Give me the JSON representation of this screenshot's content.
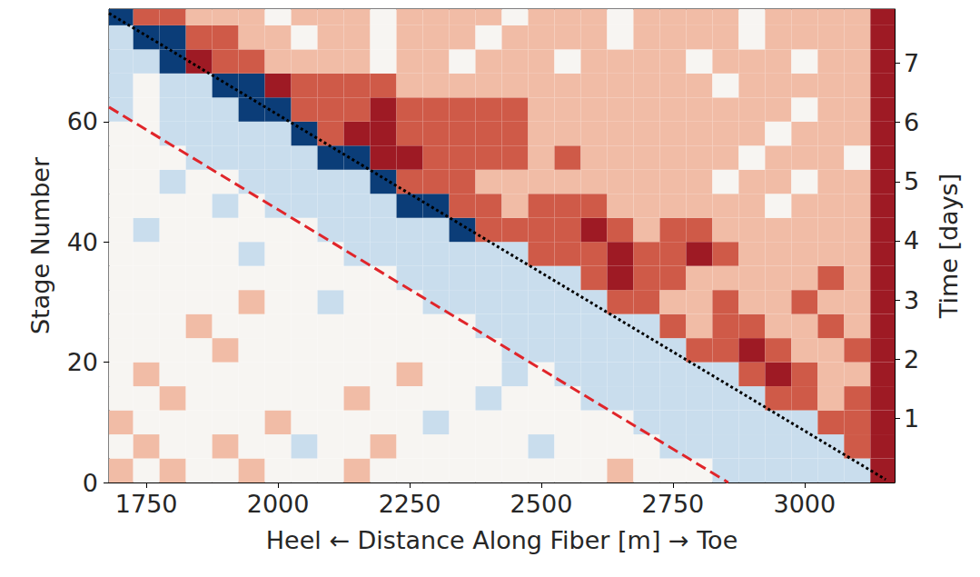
{
  "chart_data": {
    "type": "heatmap",
    "x_label": "Heel ← Distance Along Fiber [m] → Toe",
    "y_label": "Stage Number",
    "y2_label": "Time [days]",
    "xlim": [
      1679,
      3171
    ],
    "xticks": [
      1750,
      2000,
      2250,
      2500,
      2750,
      3000
    ],
    "ylim": [
      0,
      78.7
    ],
    "yticks": [
      0,
      20,
      40,
      60
    ],
    "y2lim": [
      -0.08,
      7.91
    ],
    "y2ticks": [
      1,
      2,
      3,
      4,
      5,
      6,
      7
    ],
    "color_range": [
      -3,
      3
    ],
    "x": [
      1700,
      1750,
      1800,
      1850,
      1900,
      1950,
      2000,
      2050,
      2100,
      2150,
      2200,
      2250,
      2300,
      2350,
      2400,
      2450,
      2500,
      2550,
      2600,
      2650,
      2700,
      2750,
      2800,
      2850,
      2900,
      2950,
      3000,
      3050,
      3100,
      3150
    ],
    "y": [
      2,
      6,
      10,
      14,
      18,
      22,
      26,
      30,
      34,
      38,
      42,
      46,
      50,
      54,
      58,
      62,
      66,
      70,
      74,
      78
    ],
    "cells": [
      [
        1,
        0,
        1,
        0,
        0,
        1,
        0,
        0,
        0,
        1,
        0,
        0,
        0,
        0,
        0,
        0,
        0,
        0,
        0,
        1,
        0,
        0,
        0,
        -1,
        -1,
        -1,
        -1,
        -1,
        -1,
        3
      ],
      [
        0,
        1,
        0,
        0,
        1,
        0,
        0,
        -1,
        0,
        0,
        1,
        0,
        0,
        0,
        0,
        0,
        -1,
        0,
        0,
        0,
        0,
        -1,
        -1,
        -1,
        -1,
        -1,
        -1,
        -1,
        2,
        3
      ],
      [
        1,
        0,
        0,
        0,
        0,
        0,
        1,
        0,
        0,
        0,
        0,
        0,
        -1,
        0,
        0,
        0,
        0,
        0,
        0,
        0,
        -1,
        -1,
        -1,
        -1,
        -1,
        -1,
        -1,
        2,
        2,
        3
      ],
      [
        0,
        0,
        1,
        0,
        0,
        0,
        0,
        0,
        0,
        1,
        0,
        0,
        0,
        0,
        -1,
        0,
        0,
        0,
        -1,
        -1,
        -1,
        -1,
        -1,
        -1,
        -1,
        2,
        2,
        1,
        2,
        3
      ],
      [
        0,
        1,
        0,
        0,
        0,
        0,
        0,
        0,
        0,
        0,
        0,
        1,
        0,
        0,
        0,
        -1,
        0,
        -1,
        -1,
        -1,
        -1,
        -1,
        -1,
        -1,
        2,
        3,
        2,
        1,
        1,
        3
      ],
      [
        0,
        0,
        0,
        0,
        1,
        0,
        0,
        0,
        0,
        0,
        0,
        0,
        0,
        0,
        0,
        -1,
        -1,
        -1,
        -1,
        -1,
        -1,
        -1,
        2,
        2,
        3,
        2,
        1,
        1,
        2,
        3
      ],
      [
        0,
        0,
        0,
        1,
        0,
        0,
        0,
        0,
        0,
        0,
        0,
        0,
        0,
        0,
        -1,
        -1,
        -1,
        -1,
        -1,
        -1,
        -1,
        2,
        1,
        2,
        2,
        1,
        1,
        2,
        1,
        3
      ],
      [
        0,
        0,
        0,
        0,
        0,
        1,
        0,
        0,
        -1,
        0,
        0,
        0,
        -1,
        -1,
        -1,
        -1,
        -1,
        -1,
        -1,
        2,
        2,
        1,
        1,
        2,
        1,
        1,
        2,
        1,
        1,
        3
      ],
      [
        0,
        0,
        0,
        0,
        0,
        0,
        0,
        0,
        0,
        0,
        0,
        -1,
        -1,
        -1,
        -1,
        -1,
        -1,
        -1,
        2,
        3,
        2,
        2,
        1,
        1,
        1,
        1,
        1,
        2,
        1,
        3
      ],
      [
        0,
        0,
        0,
        0,
        0,
        -1,
        0,
        0,
        0,
        -1,
        -1,
        -1,
        -1,
        -1,
        -1,
        -1,
        2,
        2,
        2,
        3,
        2,
        2,
        3,
        2,
        1,
        1,
        1,
        1,
        1,
        3
      ],
      [
        0,
        -1,
        0,
        0,
        0,
        0,
        0,
        0,
        -1,
        -1,
        -1,
        -1,
        -1,
        -3,
        2,
        2,
        2,
        2,
        3,
        2,
        1,
        2,
        2,
        1,
        1,
        1,
        1,
        1,
        1,
        3
      ],
      [
        0,
        0,
        0,
        0,
        -1,
        0,
        -1,
        -1,
        -1,
        -1,
        -1,
        -3,
        -3,
        2,
        2,
        1,
        2,
        2,
        2,
        1,
        1,
        1,
        1,
        1,
        1,
        0,
        1,
        1,
        1,
        3
      ],
      [
        0,
        0,
        -1,
        0,
        0,
        -1,
        -1,
        -1,
        -1,
        -1,
        -3,
        2,
        2,
        2,
        1,
        1,
        1,
        1,
        1,
        1,
        1,
        1,
        1,
        0,
        1,
        1,
        0,
        1,
        1,
        3
      ],
      [
        0,
        0,
        0,
        -1,
        -1,
        -1,
        -1,
        -1,
        -3,
        -3,
        3,
        3,
        2,
        2,
        2,
        2,
        1,
        2,
        1,
        1,
        1,
        1,
        1,
        1,
        0,
        1,
        1,
        1,
        0,
        3
      ],
      [
        0,
        0,
        -1,
        -1,
        -1,
        -1,
        -1,
        -3,
        2,
        3,
        3,
        2,
        2,
        2,
        2,
        2,
        1,
        1,
        1,
        1,
        1,
        1,
        1,
        1,
        1,
        0,
        1,
        1,
        1,
        3
      ],
      [
        -1,
        0,
        -1,
        -1,
        -1,
        -3,
        -3,
        2,
        2,
        2,
        3,
        2,
        2,
        2,
        2,
        2,
        1,
        1,
        1,
        1,
        1,
        1,
        1,
        1,
        1,
        1,
        0,
        1,
        1,
        3
      ],
      [
        -1,
        0,
        -1,
        -1,
        -3,
        -3,
        3,
        2,
        2,
        2,
        2,
        1,
        1,
        1,
        1,
        1,
        1,
        1,
        1,
        1,
        1,
        1,
        1,
        0,
        1,
        1,
        1,
        1,
        1,
        3
      ],
      [
        -1,
        -1,
        -3,
        3,
        2,
        2,
        1,
        1,
        1,
        1,
        0,
        1,
        1,
        0,
        1,
        1,
        1,
        0,
        1,
        1,
        1,
        1,
        0,
        1,
        1,
        1,
        0,
        1,
        1,
        3
      ],
      [
        -1,
        -3,
        -3,
        2,
        2,
        1,
        1,
        0,
        1,
        1,
        0,
        1,
        1,
        1,
        0,
        1,
        1,
        1,
        1,
        0,
        1,
        1,
        1,
        1,
        0,
        1,
        1,
        1,
        1,
        3
      ],
      [
        -3,
        2,
        2,
        1,
        1,
        1,
        0,
        1,
        1,
        1,
        0,
        1,
        1,
        1,
        1,
        0,
        1,
        1,
        1,
        0,
        1,
        1,
        1,
        1,
        0,
        1,
        1,
        1,
        1,
        3
      ]
    ],
    "lines": [
      {
        "x": [
          1679,
          3154
        ],
        "y": [
          78,
          0.5
        ],
        "color": "#000000",
        "line_style": "dotted"
      },
      {
        "x": [
          1679,
          2855
        ],
        "y": [
          62.4,
          0
        ],
        "color": "#e0252a",
        "line_style": "dashed"
      }
    ]
  }
}
